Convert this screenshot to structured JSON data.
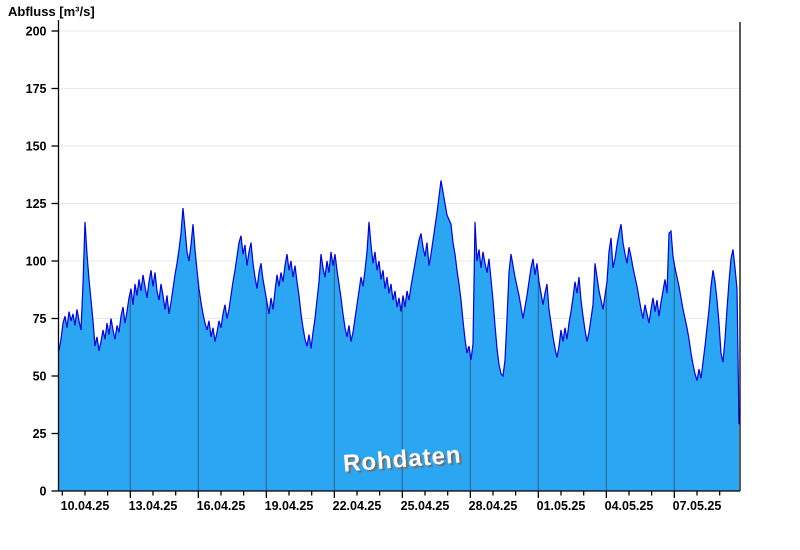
{
  "title": "Abfluss [m³/s]",
  "watermark": "Rohdaten",
  "chart_data": {
    "type": "area",
    "title": "Abfluss [m³/s]",
    "ylabel": "Abfluss [m³/s]",
    "xlabel": "",
    "series_name": "Rohdaten",
    "ylim": [
      0,
      200
    ],
    "y_ticks": [
      0,
      25,
      50,
      75,
      100,
      125,
      150,
      175,
      200
    ],
    "x_tick_labels": [
      "10.04.25",
      "13.04.25",
      "16.04.25",
      "19.04.25",
      "22.04.25",
      "25.04.25",
      "28.04.25",
      "01.05.25",
      "04.05.25",
      "07.05.25"
    ],
    "x_start_date": "09.04.25",
    "x_end_date": "09.05.25",
    "grid": true,
    "legend_position": "none",
    "unit": "m³/s",
    "colors": {
      "fill": "#2BA6F2",
      "line": "#0000E0",
      "grid_horizontal": "#EAEAEA",
      "day_separator": "#2E5F80",
      "axis": "#000000",
      "watermark_text": "#FFFFFF",
      "watermark_shadow": "#6F6F6F",
      "background": "#FFFFFF"
    },
    "values": [
      61,
      66,
      73,
      76,
      71,
      78,
      74,
      77,
      72,
      79,
      74,
      70,
      90,
      117,
      103,
      92,
      83,
      74,
      63,
      67,
      61,
      65,
      70,
      66,
      73,
      68,
      75,
      70,
      66,
      72,
      69,
      76,
      80,
      73,
      78,
      84,
      88,
      81,
      90,
      85,
      92,
      87,
      94,
      89,
      84,
      91,
      96,
      89,
      95,
      87,
      83,
      90,
      85,
      79,
      85,
      77,
      82,
      88,
      94,
      99,
      105,
      112,
      123,
      114,
      104,
      100,
      107,
      116,
      105,
      96,
      88,
      82,
      77,
      73,
      70,
      74,
      67,
      71,
      65,
      69,
      74,
      71,
      77,
      81,
      75,
      79,
      85,
      91,
      96,
      102,
      108,
      111,
      103,
      107,
      98,
      104,
      108,
      99,
      93,
      88,
      95,
      99,
      92,
      87,
      82,
      77,
      84,
      79,
      87,
      94,
      89,
      95,
      91,
      98,
      103,
      96,
      100,
      93,
      98,
      91,
      85,
      77,
      71,
      66,
      63,
      68,
      62,
      69,
      75,
      83,
      91,
      103,
      97,
      93,
      100,
      95,
      104,
      98,
      103,
      96,
      90,
      84,
      77,
      71,
      67,
      72,
      65,
      69,
      75,
      81,
      87,
      93,
      89,
      96,
      104,
      117,
      107,
      99,
      104,
      96,
      100,
      92,
      96,
      88,
      93,
      86,
      90,
      83,
      87,
      80,
      84,
      78,
      85,
      80,
      87,
      83,
      89,
      94,
      99,
      104,
      109,
      112,
      106,
      102,
      108,
      98,
      103,
      109,
      115,
      121,
      128,
      135,
      130,
      125,
      120,
      118,
      116,
      108,
      103,
      96,
      90,
      83,
      74,
      66,
      60,
      63,
      57,
      64,
      117,
      100,
      105,
      97,
      104,
      99,
      95,
      101,
      92,
      83,
      72,
      62,
      55,
      51,
      50,
      57,
      75,
      95,
      103,
      98,
      93,
      89,
      85,
      80,
      75,
      80,
      85,
      91,
      97,
      101,
      94,
      99,
      91,
      86,
      81,
      86,
      90,
      79,
      73,
      67,
      62,
      58,
      63,
      70,
      65,
      71,
      66,
      73,
      78,
      84,
      91,
      86,
      93,
      83,
      76,
      70,
      65,
      69,
      75,
      81,
      99,
      93,
      87,
      83,
      79,
      85,
      91,
      104,
      110,
      97,
      101,
      107,
      112,
      116,
      108,
      103,
      99,
      106,
      102,
      97,
      93,
      89,
      84,
      79,
      75,
      81,
      77,
      73,
      79,
      84,
      78,
      83,
      76,
      82,
      87,
      92,
      86,
      112,
      113,
      102,
      97,
      93,
      89,
      84,
      79,
      75,
      71,
      66,
      60,
      55,
      51,
      48,
      53,
      49,
      56,
      63,
      71,
      79,
      89,
      96,
      91,
      83,
      73,
      60,
      56,
      66,
      79,
      91,
      101,
      105,
      97,
      88,
      29
    ]
  }
}
